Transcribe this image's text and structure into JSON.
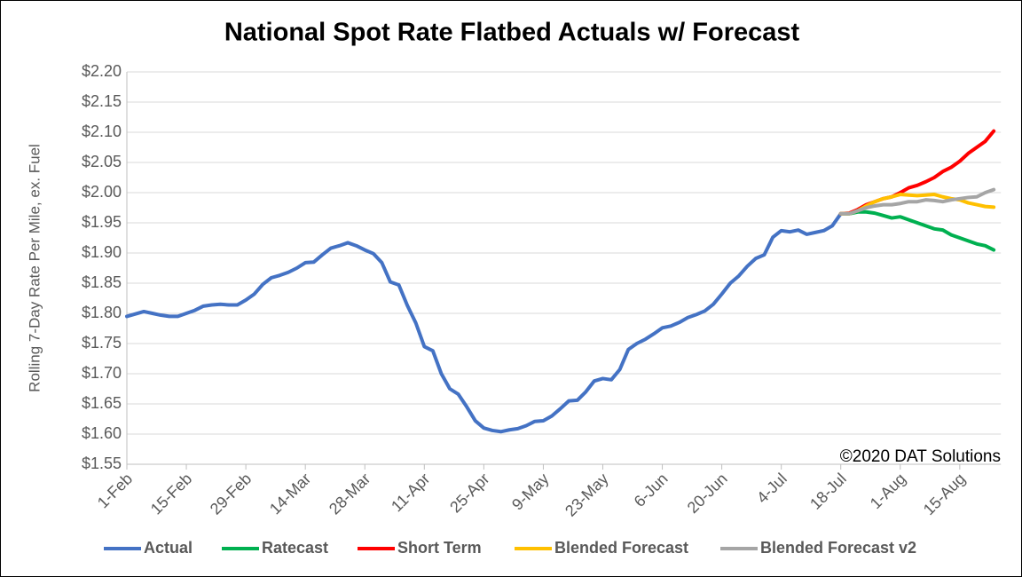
{
  "chart_data": {
    "type": "line",
    "title": "National Spot Rate Flatbed Actuals w/ Forecast",
    "y_label": "Rolling 7-Day Rate Per Mile, ex. Fuel",
    "annotation": "©2020 DAT Solutions",
    "ylim": [
      1.55,
      2.2
    ],
    "yticks": [
      {
        "value": 1.55,
        "label": "$1.55"
      },
      {
        "value": 1.6,
        "label": "$1.60"
      },
      {
        "value": 1.65,
        "label": "$1.65"
      },
      {
        "value": 1.7,
        "label": "$1.70"
      },
      {
        "value": 1.75,
        "label": "$1.75"
      },
      {
        "value": 1.8,
        "label": "$1.80"
      },
      {
        "value": 1.85,
        "label": "$1.85"
      },
      {
        "value": 1.9,
        "label": "$1.90"
      },
      {
        "value": 1.95,
        "label": "$1.95"
      },
      {
        "value": 2.0,
        "label": "$2.00"
      },
      {
        "value": 2.05,
        "label": "$2.05"
      },
      {
        "value": 2.1,
        "label": "$2.10"
      },
      {
        "value": 2.15,
        "label": "$2.15"
      },
      {
        "value": 2.2,
        "label": "$2.20"
      }
    ],
    "grid": true,
    "legend": "bottom",
    "categories": [
      "1-Feb",
      null,
      null,
      null,
      null,
      null,
      null,
      "15-Feb",
      null,
      null,
      null,
      null,
      null,
      null,
      "29-Feb",
      null,
      null,
      null,
      null,
      null,
      null,
      "14-Mar",
      null,
      null,
      null,
      null,
      null,
      null,
      "28-Mar",
      null,
      null,
      null,
      null,
      null,
      null,
      "11-Apr",
      null,
      null,
      null,
      null,
      null,
      null,
      "25-Apr",
      null,
      null,
      null,
      null,
      null,
      null,
      "9-May",
      null,
      null,
      null,
      null,
      null,
      null,
      "23-May",
      null,
      null,
      null,
      null,
      null,
      null,
      "6-Jun",
      null,
      null,
      null,
      null,
      null,
      null,
      "20-Jun",
      null,
      null,
      null,
      null,
      null,
      null,
      "4-Jul",
      null,
      null,
      null,
      null,
      null,
      null,
      "18-Jul",
      null,
      null,
      null,
      null,
      null,
      null,
      "1-Aug",
      null,
      null,
      null,
      null,
      null,
      null,
      "15-Aug",
      null,
      null,
      null,
      null
    ],
    "series": [
      {
        "name": "Actual",
        "color": "#4472c4",
        "values": [
          1.795,
          1.799,
          1.803,
          1.8,
          1.797,
          1.795,
          1.795,
          1.8,
          1.805,
          1.812,
          1.814,
          1.815,
          1.814,
          1.814,
          1.822,
          1.832,
          1.848,
          1.859,
          1.863,
          1.868,
          1.875,
          1.884,
          1.885,
          1.897,
          1.908,
          1.912,
          1.917,
          1.912,
          1.905,
          1.899,
          1.884,
          1.852,
          1.847,
          1.813,
          1.784,
          1.745,
          1.738,
          1.7,
          1.675,
          1.666,
          1.645,
          1.622,
          1.61,
          1.606,
          1.604,
          1.607,
          1.609,
          1.614,
          1.621,
          1.622,
          1.63,
          1.642,
          1.655,
          1.656,
          1.67,
          1.688,
          1.692,
          1.69,
          1.707,
          1.74,
          1.75,
          1.757,
          1.766,
          1.776,
          1.779,
          1.785,
          1.793,
          1.798,
          1.804,
          1.815,
          1.832,
          1.85,
          1.862,
          1.878,
          1.891,
          1.897,
          1.926,
          1.937,
          1.935,
          1.938,
          1.931,
          1.934,
          1.937,
          1.945,
          1.965,
          null,
          null,
          null,
          null,
          null,
          null,
          null,
          null,
          null,
          null,
          null,
          null,
          null,
          null,
          null,
          null,
          null,
          null
        ]
      },
      {
        "name": "Ratecast",
        "color": "#00b050",
        "values": [
          null,
          null,
          null,
          null,
          null,
          null,
          null,
          null,
          null,
          null,
          null,
          null,
          null,
          null,
          null,
          null,
          null,
          null,
          null,
          null,
          null,
          null,
          null,
          null,
          null,
          null,
          null,
          null,
          null,
          null,
          null,
          null,
          null,
          null,
          null,
          null,
          null,
          null,
          null,
          null,
          null,
          null,
          null,
          null,
          null,
          null,
          null,
          null,
          null,
          null,
          null,
          null,
          null,
          null,
          null,
          null,
          null,
          null,
          null,
          null,
          null,
          null,
          null,
          null,
          null,
          null,
          null,
          null,
          null,
          null,
          null,
          null,
          null,
          null,
          null,
          null,
          null,
          null,
          null,
          null,
          null,
          null,
          null,
          null,
          1.965,
          1.965,
          1.968,
          1.968,
          1.966,
          1.962,
          1.958,
          1.96,
          1.955,
          1.95,
          1.945,
          1.94,
          1.938,
          1.93,
          1.925,
          1.92,
          1.915,
          1.912,
          1.905
        ]
      },
      {
        "name": "Short Term",
        "color": "#ff0000",
        "values": [
          null,
          null,
          null,
          null,
          null,
          null,
          null,
          null,
          null,
          null,
          null,
          null,
          null,
          null,
          null,
          null,
          null,
          null,
          null,
          null,
          null,
          null,
          null,
          null,
          null,
          null,
          null,
          null,
          null,
          null,
          null,
          null,
          null,
          null,
          null,
          null,
          null,
          null,
          null,
          null,
          null,
          null,
          null,
          null,
          null,
          null,
          null,
          null,
          null,
          null,
          null,
          null,
          null,
          null,
          null,
          null,
          null,
          null,
          null,
          null,
          null,
          null,
          null,
          null,
          null,
          null,
          null,
          null,
          null,
          null,
          null,
          null,
          null,
          null,
          null,
          null,
          null,
          null,
          null,
          null,
          null,
          null,
          null,
          null,
          1.965,
          1.966,
          1.972,
          1.98,
          1.985,
          1.99,
          1.993,
          2.0,
          2.008,
          2.012,
          2.018,
          2.025,
          2.035,
          2.042,
          2.052,
          2.065,
          2.075,
          2.085,
          2.102
        ]
      },
      {
        "name": "Blended Forecast",
        "color": "#ffc000",
        "values": [
          null,
          null,
          null,
          null,
          null,
          null,
          null,
          null,
          null,
          null,
          null,
          null,
          null,
          null,
          null,
          null,
          null,
          null,
          null,
          null,
          null,
          null,
          null,
          null,
          null,
          null,
          null,
          null,
          null,
          null,
          null,
          null,
          null,
          null,
          null,
          null,
          null,
          null,
          null,
          null,
          null,
          null,
          null,
          null,
          null,
          null,
          null,
          null,
          null,
          null,
          null,
          null,
          null,
          null,
          null,
          null,
          null,
          null,
          null,
          null,
          null,
          null,
          null,
          null,
          null,
          null,
          null,
          null,
          null,
          null,
          null,
          null,
          null,
          null,
          null,
          null,
          null,
          null,
          null,
          null,
          null,
          null,
          null,
          null,
          1.965,
          1.965,
          1.97,
          1.978,
          1.985,
          1.99,
          1.993,
          1.997,
          1.996,
          1.995,
          1.996,
          1.997,
          1.993,
          1.99,
          1.988,
          1.983,
          1.98,
          1.977,
          1.976
        ]
      },
      {
        "name": "Blended Forecast v2",
        "color": "#a5a5a5",
        "values": [
          null,
          null,
          null,
          null,
          null,
          null,
          null,
          null,
          null,
          null,
          null,
          null,
          null,
          null,
          null,
          null,
          null,
          null,
          null,
          null,
          null,
          null,
          null,
          null,
          null,
          null,
          null,
          null,
          null,
          null,
          null,
          null,
          null,
          null,
          null,
          null,
          null,
          null,
          null,
          null,
          null,
          null,
          null,
          null,
          null,
          null,
          null,
          null,
          null,
          null,
          null,
          null,
          null,
          null,
          null,
          null,
          null,
          null,
          null,
          null,
          null,
          null,
          null,
          null,
          null,
          null,
          null,
          null,
          null,
          null,
          null,
          null,
          null,
          null,
          null,
          null,
          null,
          null,
          null,
          null,
          null,
          null,
          null,
          null,
          1.965,
          1.965,
          1.97,
          1.975,
          1.978,
          1.98,
          1.98,
          1.982,
          1.985,
          1.985,
          1.988,
          1.987,
          1.985,
          1.988,
          1.99,
          1.992,
          1.993,
          2.0,
          2.005
        ]
      }
    ]
  }
}
